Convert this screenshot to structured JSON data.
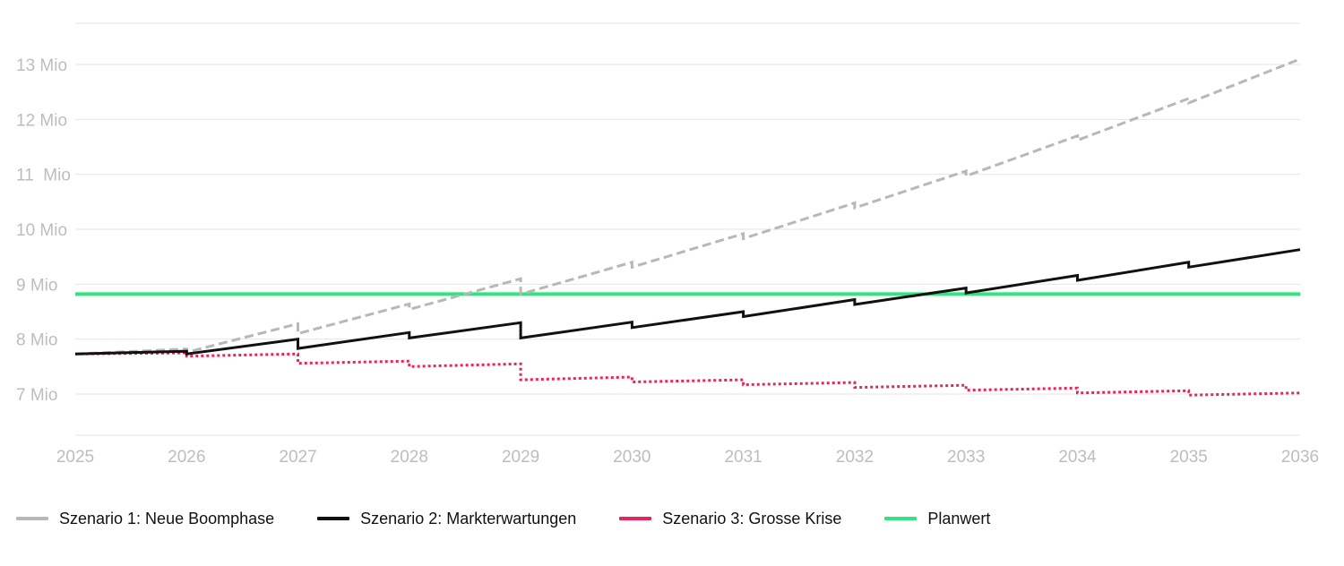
{
  "chart_data": {
    "type": "line",
    "title": "",
    "xlabel": "",
    "ylabel": "",
    "x_ticks": [
      "2025",
      "2026",
      "2027",
      "2028",
      "2029",
      "2030",
      "2031",
      "2032",
      "2033",
      "2034",
      "2035",
      "2036"
    ],
    "y_ticks": [
      {
        "value": 7000000,
        "label": "7 Mio"
      },
      {
        "value": 8000000,
        "label": "8 Mio"
      },
      {
        "value": 9000000,
        "label": "9 Mio"
      },
      {
        "value": 10000000,
        "label": "10 Mio"
      },
      {
        "value": 11000000,
        "label": "11  Mio"
      },
      {
        "value": 12000000,
        "label": "12 Mio"
      },
      {
        "value": 13000000,
        "label": "13 Mio"
      }
    ],
    "xlim": [
      2025,
      2036
    ],
    "ylim": [
      6250000,
      13750000
    ],
    "grid": "horizontal",
    "legend_position": "bottom-left",
    "series": [
      {
        "name": "Szenario 1: Neue Boomphase",
        "color": "#b8b8b8",
        "style": "dashed",
        "segments": [
          [
            [
              2025,
              7730000
            ],
            [
              2026,
              7820000
            ]
          ],
          [
            [
              2026,
              7760000
            ],
            [
              2027,
              8280000
            ]
          ],
          [
            [
              2027,
              8100000
            ],
            [
              2028,
              8640000
            ]
          ],
          [
            [
              2028,
              8540000
            ],
            [
              2029,
              9100000
            ]
          ],
          [
            [
              2029,
              8820000
            ],
            [
              2030,
              9400000
            ]
          ],
          [
            [
              2030,
              9310000
            ],
            [
              2031,
              9920000
            ]
          ],
          [
            [
              2031,
              9830000
            ],
            [
              2032,
              10480000
            ]
          ],
          [
            [
              2032,
              10390000
            ],
            [
              2033,
              11060000
            ]
          ],
          [
            [
              2033,
              10970000
            ],
            [
              2034,
              11700000
            ]
          ],
          [
            [
              2034,
              11620000
            ],
            [
              2035,
              12380000
            ]
          ],
          [
            [
              2035,
              12300000
            ],
            [
              2036,
              13100000
            ]
          ]
        ]
      },
      {
        "name": "Szenario 2: Markterwartungen",
        "color": "#111111",
        "style": "solid",
        "segments": [
          [
            [
              2025,
              7730000
            ],
            [
              2026,
              7780000
            ]
          ],
          [
            [
              2026,
              7730000
            ],
            [
              2027,
              8000000
            ]
          ],
          [
            [
              2027,
              7830000
            ],
            [
              2028,
              8120000
            ]
          ],
          [
            [
              2028,
              8020000
            ],
            [
              2029,
              8300000
            ]
          ],
          [
            [
              2029,
              8020000
            ],
            [
              2030,
              8310000
            ]
          ],
          [
            [
              2030,
              8210000
            ],
            [
              2031,
              8500000
            ]
          ],
          [
            [
              2031,
              8410000
            ],
            [
              2032,
              8720000
            ]
          ],
          [
            [
              2032,
              8630000
            ],
            [
              2033,
              8930000
            ]
          ],
          [
            [
              2033,
              8840000
            ],
            [
              2034,
              9160000
            ]
          ],
          [
            [
              2034,
              9070000
            ],
            [
              2035,
              9400000
            ]
          ],
          [
            [
              2035,
              9310000
            ],
            [
              2036,
              9630000
            ]
          ]
        ]
      },
      {
        "name": "Szenario 3: Grosse Krise",
        "color": "#e8245c",
        "style": "dotted",
        "segments": [
          [
            [
              2025,
              7730000
            ],
            [
              2026,
              7750000
            ]
          ],
          [
            [
              2026,
              7690000
            ],
            [
              2027,
              7730000
            ]
          ],
          [
            [
              2027,
              7560000
            ],
            [
              2028,
              7600000
            ]
          ],
          [
            [
              2028,
              7500000
            ],
            [
              2029,
              7550000
            ]
          ],
          [
            [
              2029,
              7260000
            ],
            [
              2030,
              7310000
            ]
          ],
          [
            [
              2030,
              7220000
            ],
            [
              2031,
              7260000
            ]
          ],
          [
            [
              2031,
              7170000
            ],
            [
              2032,
              7210000
            ]
          ],
          [
            [
              2032,
              7120000
            ],
            [
              2033,
              7160000
            ]
          ],
          [
            [
              2033,
              7070000
            ],
            [
              2034,
              7110000
            ]
          ],
          [
            [
              2034,
              7020000
            ],
            [
              2035,
              7060000
            ]
          ],
          [
            [
              2035,
              6980000
            ],
            [
              2036,
              7020000
            ]
          ]
        ]
      },
      {
        "name": "Planwert",
        "color": "#2ee57e",
        "style": "solid",
        "segments": [
          [
            [
              2025,
              8820000
            ],
            [
              2036,
              8820000
            ]
          ]
        ]
      }
    ]
  }
}
